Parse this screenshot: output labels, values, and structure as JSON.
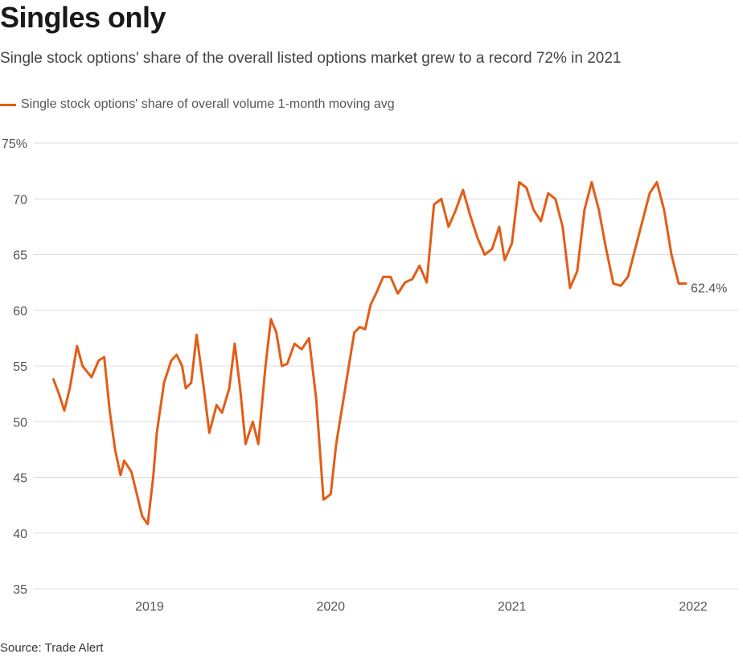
{
  "header": {
    "title": "Singles only",
    "subtitle": "Single stock options' share of the overall listed options market grew to a record 72% in 2021"
  },
  "footer": {
    "source": "Source: Trade Alert"
  },
  "colors": {
    "line": "#e35d16",
    "grid": "#dcdcdc",
    "text": "#555555"
  },
  "chart_data": {
    "type": "line",
    "title": "Singles only",
    "subtitle": "Single stock options' share of the overall listed options market grew to a record 72% in 2021",
    "legend": "top-left",
    "grid": true,
    "xlim": [
      2018.45,
      2022.0
    ],
    "ylim": [
      35,
      75
    ],
    "y_ticks": [
      35,
      40,
      45,
      50,
      55,
      60,
      65,
      70,
      75
    ],
    "y_tick_labels": [
      "35",
      "40",
      "45",
      "50",
      "55",
      "60",
      "65",
      "70",
      "75%"
    ],
    "x_ticks": [
      2019,
      2020,
      2021,
      2022
    ],
    "x_tick_labels": [
      "2019",
      "2020",
      "2021",
      "2022"
    ],
    "end_label": "62.4%",
    "series": [
      {
        "name": "Single stock options' share of overall volume 1-month moving avg",
        "x": [
          2018.47,
          2018.5,
          2018.53,
          2018.56,
          2018.6,
          2018.63,
          2018.68,
          2018.72,
          2018.75,
          2018.78,
          2018.81,
          2018.84,
          2018.86,
          2018.88,
          2018.9,
          2018.93,
          2018.96,
          2018.99,
          2019.02,
          2019.04,
          2019.08,
          2019.12,
          2019.15,
          2019.18,
          2019.2,
          2019.23,
          2019.26,
          2019.3,
          2019.33,
          2019.37,
          2019.4,
          2019.44,
          2019.47,
          2019.5,
          2019.53,
          2019.57,
          2019.6,
          2019.64,
          2019.67,
          2019.7,
          2019.73,
          2019.76,
          2019.8,
          2019.84,
          2019.88,
          2019.92,
          2019.96,
          2020.0,
          2020.03,
          2020.07,
          2020.1,
          2020.13,
          2020.16,
          2020.19,
          2020.22,
          2020.25,
          2020.29,
          2020.33,
          2020.37,
          2020.41,
          2020.45,
          2020.49,
          2020.53,
          2020.57,
          2020.61,
          2020.65,
          2020.69,
          2020.73,
          2020.77,
          2020.81,
          2020.85,
          2020.89,
          2020.93,
          2020.96,
          2021.0,
          2021.04,
          2021.08,
          2021.12,
          2021.16,
          2021.2,
          2021.24,
          2021.28,
          2021.32,
          2021.36,
          2021.4,
          2021.44,
          2021.48,
          2021.52,
          2021.56,
          2021.6,
          2021.64,
          2021.68,
          2021.72,
          2021.76,
          2021.8,
          2021.84,
          2021.88,
          2021.92,
          2021.96
        ],
        "values": [
          53.8,
          52.5,
          51.0,
          53.0,
          56.8,
          55.0,
          54.0,
          55.5,
          55.8,
          51.0,
          47.5,
          45.2,
          46.5,
          46.0,
          45.5,
          43.5,
          41.5,
          40.8,
          45.0,
          49.0,
          53.5,
          55.5,
          56.0,
          55.0,
          53.0,
          53.5,
          57.8,
          53.0,
          49.0,
          51.5,
          50.8,
          53.0,
          57.0,
          53.0,
          48.0,
          50.0,
          48.0,
          55.0,
          59.2,
          58.0,
          55.0,
          55.2,
          57.0,
          56.5,
          57.5,
          52.0,
          43.0,
          43.5,
          48.0,
          52.0,
          55.0,
          58.0,
          58.5,
          58.3,
          60.5,
          61.5,
          63.0,
          63.0,
          61.5,
          62.5,
          62.8,
          64.0,
          62.5,
          69.5,
          70.0,
          67.5,
          69.0,
          70.8,
          68.5,
          66.5,
          65.0,
          65.5,
          67.5,
          64.5,
          66.0,
          71.5,
          71.0,
          69.0,
          68.0,
          70.5,
          70.0,
          67.5,
          62.0,
          63.5,
          69.0,
          71.5,
          69.0,
          65.5,
          62.4,
          62.2,
          63.0,
          65.5,
          68.0,
          70.5,
          71.5,
          69.0,
          65.0,
          62.4,
          62.4
        ]
      }
    ]
  }
}
